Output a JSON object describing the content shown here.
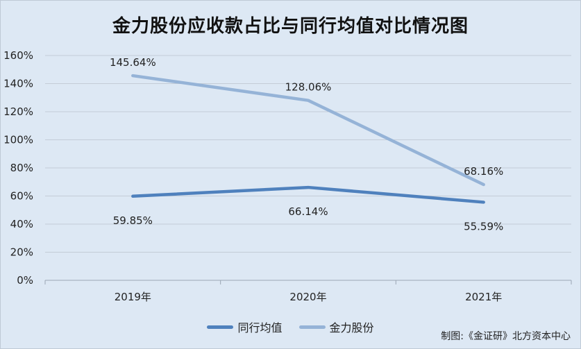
{
  "chart_data": {
    "type": "line",
    "title": "金力股份应收款占比与同行均值对比情况图",
    "categories": [
      "2019年",
      "2020年",
      "2021年"
    ],
    "ylim": [
      0,
      160
    ],
    "yticks": [
      "0%",
      "20%",
      "40%",
      "60%",
      "80%",
      "100%",
      "120%",
      "140%",
      "160%"
    ],
    "grid": true,
    "legend_position": "bottom",
    "series": [
      {
        "name": "同行均值",
        "values": [
          59.85,
          66.14,
          55.59
        ],
        "labels": [
          "59.85%",
          "66.14%",
          "55.59%"
        ],
        "color": "#4f81bd"
      },
      {
        "name": "金力股份",
        "values": [
          145.64,
          128.06,
          68.16
        ],
        "labels": [
          "145.64%",
          "128.06%",
          "68.16%"
        ],
        "color": "#95b3d7"
      }
    ]
  },
  "credit": "制图:《金证研》北方资本中心"
}
